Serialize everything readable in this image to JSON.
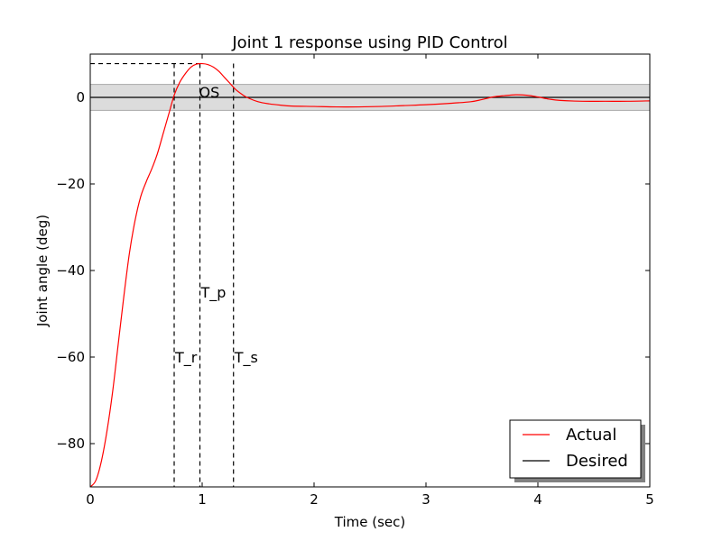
{
  "chart_data": {
    "type": "line",
    "title": "Joint 1 response using PID Control",
    "xlabel": "Time (sec)",
    "ylabel": "Joint angle (deg)",
    "xlim": [
      0,
      5
    ],
    "ylim": [
      -90,
      10
    ],
    "xticks": [
      0,
      1,
      2,
      3,
      4,
      5
    ],
    "xtick_labels": [
      "0",
      "1",
      "2",
      "3",
      "4",
      "5"
    ],
    "yticks": [
      -80,
      -60,
      -40,
      -20,
      0
    ],
    "ytick_labels": [
      "−80",
      "−60",
      "−40",
      "−20",
      "0"
    ],
    "grid": false,
    "legend": {
      "position": "bottom-right",
      "shadow": true
    },
    "tolerance_band": {
      "y_min": -3,
      "y_max": 3,
      "color": "#dcdcdc"
    },
    "series": [
      {
        "name": "Actual",
        "color": "#ff0000",
        "points": [
          [
            0,
            -90
          ],
          [
            0.05,
            -88.5
          ],
          [
            0.1,
            -84
          ],
          [
            0.15,
            -77
          ],
          [
            0.2,
            -68
          ],
          [
            0.25,
            -57
          ],
          [
            0.3,
            -46
          ],
          [
            0.35,
            -36
          ],
          [
            0.4,
            -28.5
          ],
          [
            0.45,
            -23
          ],
          [
            0.5,
            -19.5
          ],
          [
            0.55,
            -16.5
          ],
          [
            0.6,
            -13
          ],
          [
            0.65,
            -8.5
          ],
          [
            0.7,
            -4
          ],
          [
            0.75,
            0.5
          ],
          [
            0.8,
            3.5
          ],
          [
            0.85,
            5.5
          ],
          [
            0.9,
            7
          ],
          [
            0.95,
            7.7
          ],
          [
            1.0,
            7.8
          ],
          [
            1.05,
            7.6
          ],
          [
            1.1,
            7
          ],
          [
            1.15,
            6
          ],
          [
            1.2,
            4.6
          ],
          [
            1.25,
            3.2
          ],
          [
            1.3,
            1.8
          ],
          [
            1.35,
            0.8
          ],
          [
            1.4,
            0
          ],
          [
            1.5,
            -1
          ],
          [
            1.6,
            -1.5
          ],
          [
            1.7,
            -1.8
          ],
          [
            1.8,
            -2
          ],
          [
            2.0,
            -2.1
          ],
          [
            2.2,
            -2.2
          ],
          [
            2.4,
            -2.2
          ],
          [
            2.6,
            -2.1
          ],
          [
            2.8,
            -1.9
          ],
          [
            3.0,
            -1.7
          ],
          [
            3.2,
            -1.4
          ],
          [
            3.4,
            -1.0
          ],
          [
            3.5,
            -0.5
          ],
          [
            3.6,
            0.1
          ],
          [
            3.7,
            0.4
          ],
          [
            3.8,
            0.6
          ],
          [
            3.9,
            0.5
          ],
          [
            4.0,
            0.1
          ],
          [
            4.1,
            -0.4
          ],
          [
            4.2,
            -0.7
          ],
          [
            4.4,
            -0.9
          ],
          [
            4.6,
            -0.9
          ],
          [
            4.8,
            -0.9
          ],
          [
            5.0,
            -0.8
          ]
        ]
      },
      {
        "name": "Desired",
        "color": "#000000",
        "points": [
          [
            0,
            0
          ],
          [
            5,
            0
          ]
        ]
      }
    ],
    "markers": [
      {
        "label": "T_r",
        "x": 0.75,
        "label_y": -60
      },
      {
        "label": "T_p",
        "x": 0.98,
        "label_y": -45
      },
      {
        "label": "T_s",
        "x": 1.28,
        "label_y": -60
      }
    ],
    "peak": {
      "label": "OS",
      "x": 0.98,
      "y": 7.8
    }
  }
}
